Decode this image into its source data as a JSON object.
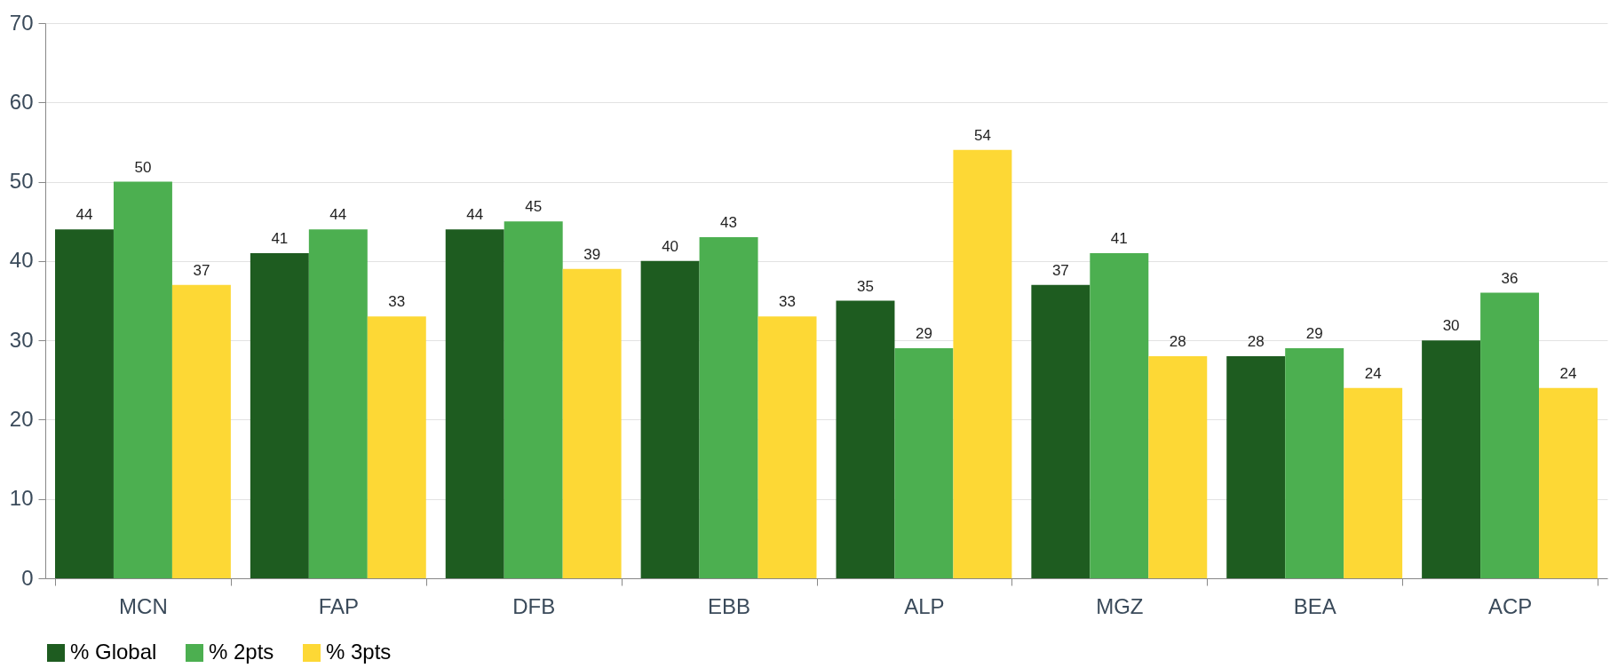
{
  "chart_data": {
    "type": "bar",
    "categories": [
      "MCN",
      "FAP",
      "DFB",
      "EBB",
      "ALP",
      "MGZ",
      "BEA",
      "ACP"
    ],
    "series": [
      {
        "name": "% Global",
        "color": "#1e5c20",
        "values": [
          44,
          41,
          44,
          40,
          35,
          37,
          28,
          30
        ]
      },
      {
        "name": "% 2pts",
        "color": "#4caf50",
        "values": [
          50,
          44,
          45,
          43,
          29,
          41,
          29,
          36
        ]
      },
      {
        "name": "% 3pts",
        "color": "#fdd835",
        "values": [
          37,
          33,
          39,
          33,
          54,
          28,
          24,
          24
        ]
      }
    ],
    "ylim": [
      0,
      70
    ],
    "yticks": [
      0,
      10,
      20,
      30,
      40,
      50,
      60,
      70
    ],
    "grid": "y",
    "legend": "bottom",
    "data_labels": true
  }
}
